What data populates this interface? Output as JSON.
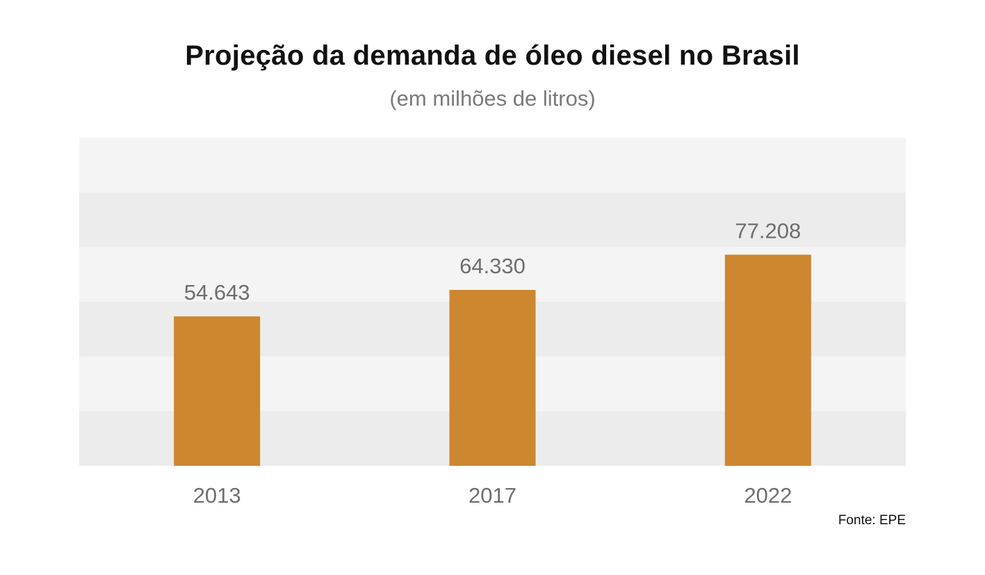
{
  "chart_data": {
    "type": "bar",
    "title": "Projeção da demanda de óleo diesel no Brasil",
    "subtitle": "(em milhões de litros)",
    "categories": [
      "2013",
      "2017",
      "2022"
    ],
    "values": [
      54643,
      64330,
      77208
    ],
    "value_labels": [
      "54.643",
      "64.330",
      "77.208"
    ],
    "ylim": [
      0,
      120000
    ],
    "grid": "alternating horizontal bands",
    "legend": "none",
    "source": "Fonte: EPE"
  },
  "colors": {
    "bar": "#cd872e",
    "band_light": "#f4f4f4",
    "band_dark": "#ececec",
    "label": "#6e6e6e",
    "title": "#111111"
  }
}
